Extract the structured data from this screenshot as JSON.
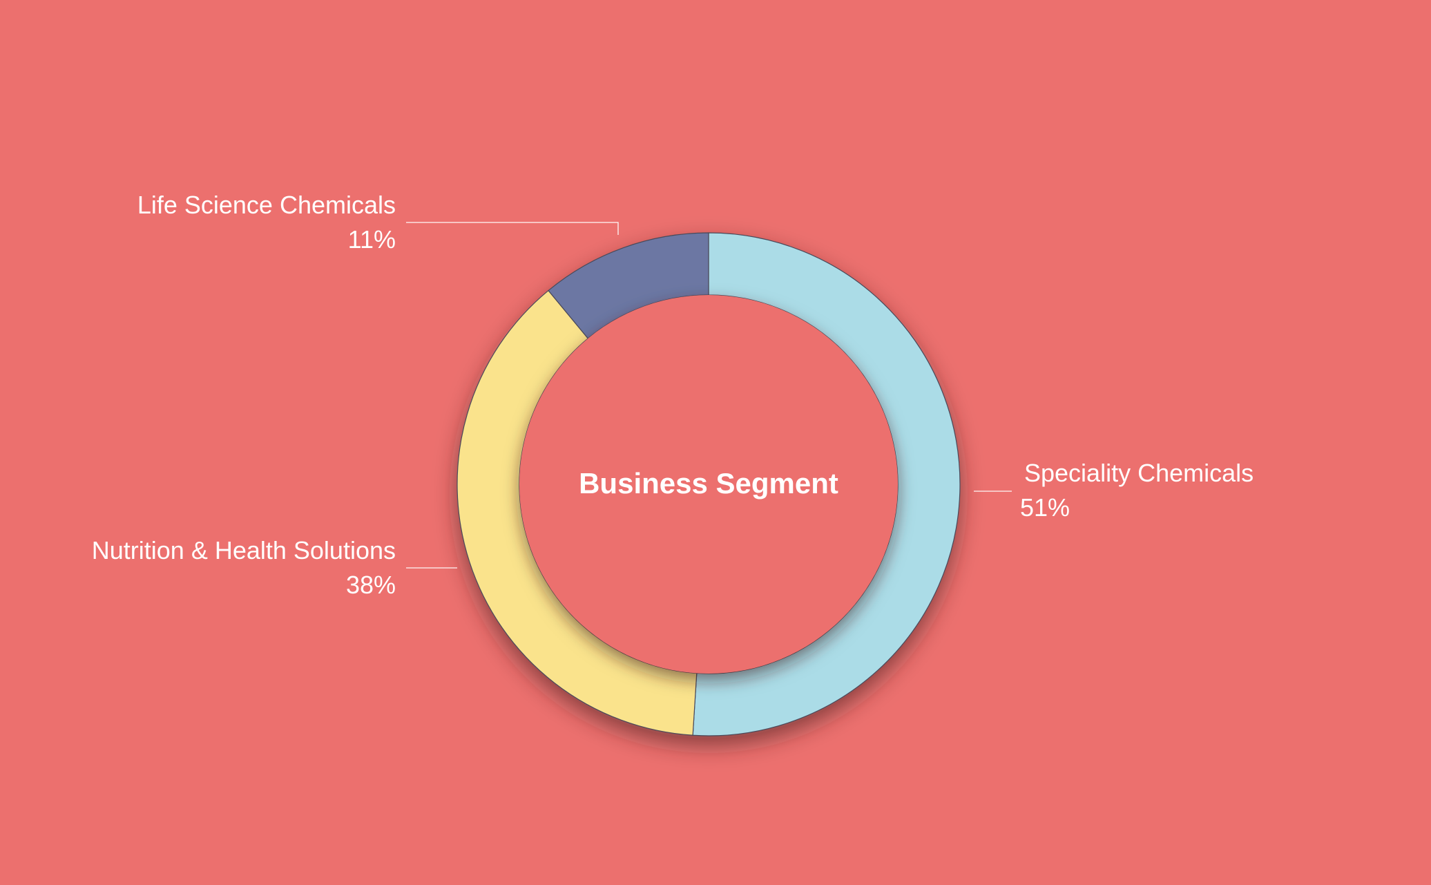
{
  "chart_data": {
    "type": "pie",
    "title": "Business Segment",
    "slices": [
      {
        "label": "Speciality Chemicals",
        "value": 51,
        "value_text": "51%",
        "color": "#ABDCE7"
      },
      {
        "label": "Nutrition & Health Solutions",
        "value": 38,
        "value_text": "38%",
        "color": "#FAE38C"
      },
      {
        "label": "Life Science Chemicals",
        "value": 11,
        "value_text": "11%",
        "color": "#6C77A3"
      }
    ],
    "hole": true,
    "legend": "none",
    "start_angle_deg": 0,
    "direction": "clockwise",
    "background_color": "#EC706E",
    "label_color": "#FFFFFF"
  }
}
